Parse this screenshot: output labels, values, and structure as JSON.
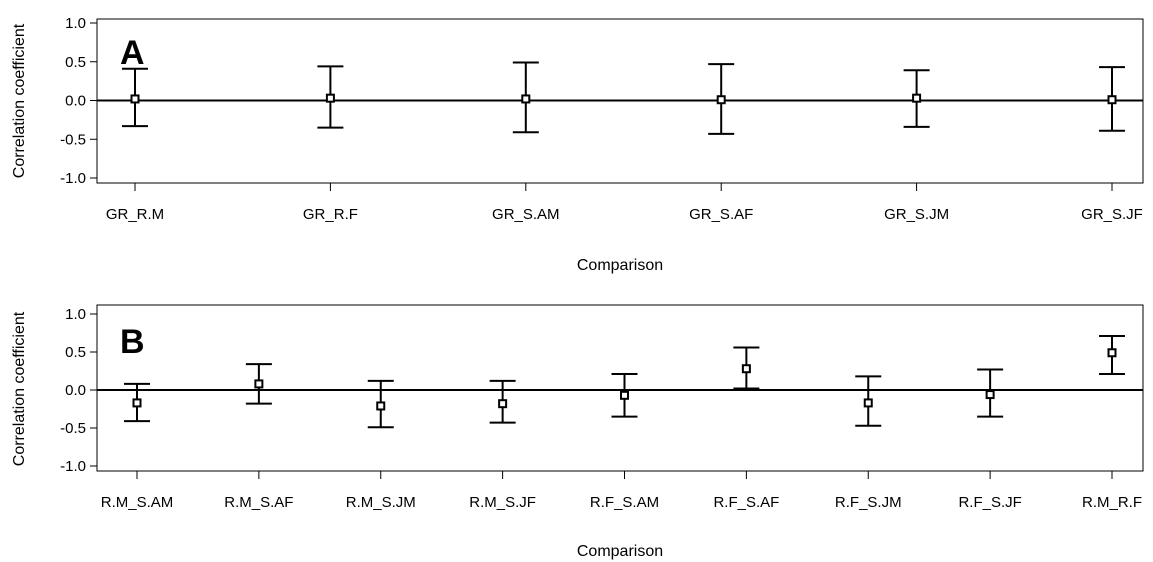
{
  "chart_data": [
    {
      "type": "errorbar",
      "panel_label": "A",
      "xlabel": "Comparison",
      "ylabel": "Correlation coefficient",
      "ylim": [
        -1.0,
        1.0
      ],
      "yticks": [
        "-1.0",
        "-0.5",
        "0.0",
        "0.5",
        "1.0"
      ],
      "reference_line": 0.0,
      "categories": [
        "GR_R.M",
        "GR_R.F",
        "GR_S.AM",
        "GR_S.AF",
        "GR_S.JM",
        "GR_S.JF"
      ],
      "values": [
        0.02,
        0.03,
        0.02,
        0.01,
        0.03,
        0.01
      ],
      "lower": [
        -0.33,
        -0.35,
        -0.41,
        -0.43,
        -0.34,
        -0.39
      ],
      "upper": [
        0.41,
        0.44,
        0.49,
        0.47,
        0.39,
        0.43
      ]
    },
    {
      "type": "errorbar",
      "panel_label": "B",
      "xlabel": "Comparison",
      "ylabel": "Correlation coefficient",
      "ylim": [
        -1.0,
        1.0
      ],
      "yticks": [
        "-1.0",
        "-0.5",
        "0.0",
        "0.5",
        "1.0"
      ],
      "reference_line": 0.0,
      "categories": [
        "R.M_S.AM",
        "R.M_S.AF",
        "R.M_S.JM",
        "R.M_S.JF",
        "R.F_S.AM",
        "R.F_S.AF",
        "R.F_S.JM",
        "R.F_S.JF",
        "R.M_R.F"
      ],
      "values": [
        -0.17,
        0.08,
        -0.21,
        -0.18,
        -0.07,
        0.28,
        -0.17,
        -0.06,
        0.49
      ],
      "lower": [
        -0.41,
        -0.18,
        -0.49,
        -0.43,
        -0.35,
        0.02,
        -0.47,
        -0.35,
        0.21
      ],
      "upper": [
        0.08,
        0.34,
        0.12,
        0.12,
        0.21,
        0.56,
        0.18,
        0.27,
        0.71
      ]
    }
  ]
}
